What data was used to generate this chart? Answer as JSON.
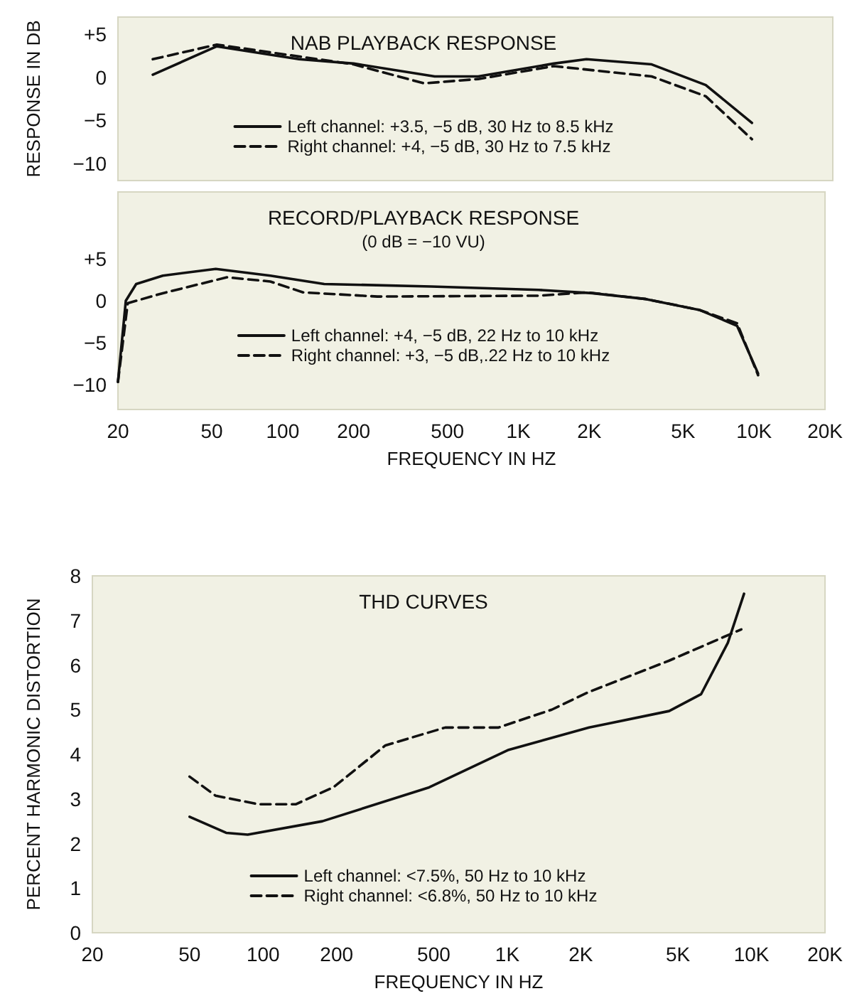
{
  "chart_data": [
    {
      "type": "line",
      "title": "NAB PLAYBACK RESPONSE",
      "ylabel": "RESPONSE IN DB",
      "log": "x",
      "xlim": [
        20,
        20000
      ],
      "ylim": [
        -12,
        7
      ],
      "yticks": [
        {
          "value": 5,
          "label": "+5"
        },
        0,
        {
          "value": -5,
          "label": "−5"
        },
        {
          "value": -10,
          "label": "−10"
        }
      ],
      "tick_labels": "y",
      "grid": false,
      "legend": "bottom",
      "marker": "none",
      "series": [
        {
          "name": "Left channel: +3.5, −5 dB, 30 Hz to 8.5 kHz",
          "color": "#111111",
          "line_style": "solid",
          "x": [
            28,
            52,
            115,
            195,
            427,
            650,
            1350,
            1850,
            3475,
            5860,
            9160
          ],
          "values": [
            0.3,
            3.6,
            2.1,
            1.6,
            0.1,
            0.1,
            1.6,
            2.1,
            1.5,
            -0.9,
            -5.3
          ]
        },
        {
          "name": "Right channel: +4, −5 dB, 30 Hz to 7.5 kHz",
          "color": "#111111",
          "line_style": "dashed",
          "x": [
            28,
            52,
            195,
            385,
            650,
            1350,
            3475,
            5860,
            9160
          ],
          "values": [
            2.1,
            3.8,
            1.5,
            -0.7,
            -0.2,
            1.3,
            0.1,
            -2.2,
            -7.2
          ]
        }
      ]
    },
    {
      "type": "line",
      "title": "RECORD/PLAYBACK RESPONSE",
      "subtitle": "(0 dB = −10 VU)",
      "xlabel": "FREQUENCY IN HZ",
      "log": "x",
      "xlim": [
        20,
        20000
      ],
      "xticks": [
        {
          "value": 20,
          "label": "20"
        },
        {
          "value": 50,
          "label": "50"
        },
        {
          "value": 100,
          "label": "100"
        },
        {
          "value": 200,
          "label": "200"
        },
        {
          "value": 500,
          "label": "500"
        },
        {
          "value": 1000,
          "label": "1K"
        },
        {
          "value": 2000,
          "label": "2K"
        },
        {
          "value": 5000,
          "label": "5K"
        },
        {
          "value": 10000,
          "label": "10K"
        },
        {
          "value": 20000,
          "label": "20K"
        }
      ],
      "ylim": [
        -13,
        13
      ],
      "yticks": [
        {
          "value": 5,
          "label": "+5"
        },
        0,
        {
          "value": -5,
          "label": "−5"
        },
        {
          "value": -10,
          "label": "−10"
        }
      ],
      "grid": false,
      "legend": "bottom",
      "marker": "none",
      "series": [
        {
          "name": "Left channel: +4, −5 dB, 22 Hz to 10 kHz",
          "color": "#111111",
          "line_style": "solid",
          "x": [
            20,
            21.6,
            23.9,
            31,
            52,
            88.6,
            150,
            427,
            1218,
            2057,
            3475,
            5860,
            8470,
            10400
          ],
          "values": [
            -9.7,
            0,
            2.0,
            3.0,
            3.8,
            3.0,
            2.0,
            1.7,
            1.3,
            0.9,
            0.2,
            -1.1,
            -3.0,
            -8.7
          ]
        },
        {
          "name": "Right channel: +3, −5 dB,.22 Hz to 10 kHz",
          "color": "#111111",
          "line_style": "dashed",
          "x": [
            20,
            22,
            31,
            58,
            88.6,
            122,
            252,
            1218,
            1950,
            3475,
            5860,
            8470,
            10400
          ],
          "values": [
            -9.7,
            -0.3,
            0.9,
            2.8,
            2.3,
            1.0,
            0.5,
            0.6,
            1.0,
            0.2,
            -1.1,
            -2.7,
            -8.9
          ]
        }
      ]
    },
    {
      "type": "line",
      "title": "THD CURVES",
      "xlabel": "FREQUENCY IN HZ",
      "ylabel": "PERCENT HARMONIC DISTORTION",
      "log": "x",
      "xlim": [
        20,
        20000
      ],
      "xticks": [
        {
          "value": 20,
          "label": "20"
        },
        {
          "value": 50,
          "label": "50"
        },
        {
          "value": 100,
          "label": "100"
        },
        {
          "value": 200,
          "label": "200"
        },
        {
          "value": 500,
          "label": "500"
        },
        {
          "value": 1000,
          "label": "1K"
        },
        {
          "value": 2000,
          "label": "2K"
        },
        {
          "value": 5000,
          "label": "5K"
        },
        {
          "value": 10000,
          "label": "10K"
        },
        {
          "value": 20000,
          "label": "20K"
        }
      ],
      "ylim": [
        0,
        8
      ],
      "yticks": [
        0,
        1,
        2,
        3,
        4,
        5,
        6,
        7,
        8
      ],
      "grid": false,
      "legend": "bottom",
      "marker": "none",
      "series": [
        {
          "name": "Left channel: <7.5%, 50 Hz to 10 kHz",
          "color": "#111111",
          "line_style": "solid",
          "x": [
            50,
            70.6,
            86.5,
            175,
            479,
            1013,
            2163,
            4600,
            6220,
            8000,
            9320
          ],
          "values": [
            2.6,
            2.24,
            2.2,
            2.5,
            3.26,
            4.1,
            4.6,
            4.97,
            5.35,
            6.5,
            7.6
          ]
        },
        {
          "name": "Right channel: <6.8%, 50 Hz to 10 kHz",
          "color": "#111111",
          "line_style": "dashed",
          "x": [
            50,
            64,
            95.7,
            136,
            194,
            317,
            557,
            920,
            1520,
            2163,
            4600,
            9080
          ],
          "values": [
            3.5,
            3.07,
            2.88,
            2.88,
            3.26,
            4.2,
            4.6,
            4.6,
            5.0,
            5.4,
            6.1,
            6.8
          ]
        }
      ]
    }
  ]
}
